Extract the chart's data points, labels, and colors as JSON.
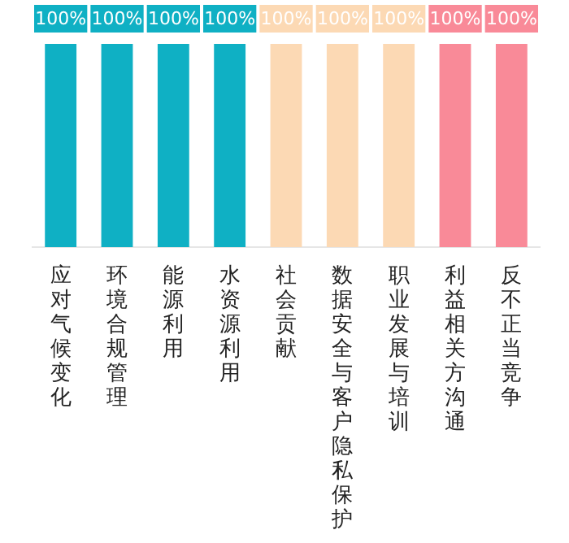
{
  "chart_data": {
    "type": "bar",
    "categories": [
      "应对气候变化",
      "环境合规管理",
      "能源利用",
      "水资源利用",
      "社会贡献",
      "数据安全与客户隐私保护",
      "职业发展与培训",
      "利益相关方沟通",
      "反不正当竞争"
    ],
    "values": [
      100,
      100,
      100,
      100,
      100,
      100,
      100,
      100,
      100
    ],
    "colors": [
      "#0fb0c4",
      "#0fb0c4",
      "#0fb0c4",
      "#0fb0c4",
      "#fcd9b4",
      "#fcd9b4",
      "#fcd9b4",
      "#f98a98",
      "#f98a98"
    ],
    "value_labels": [
      "100%",
      "100%",
      "100%",
      "100%",
      "100%",
      "100%",
      "100%",
      "100%",
      "100%"
    ]
  }
}
